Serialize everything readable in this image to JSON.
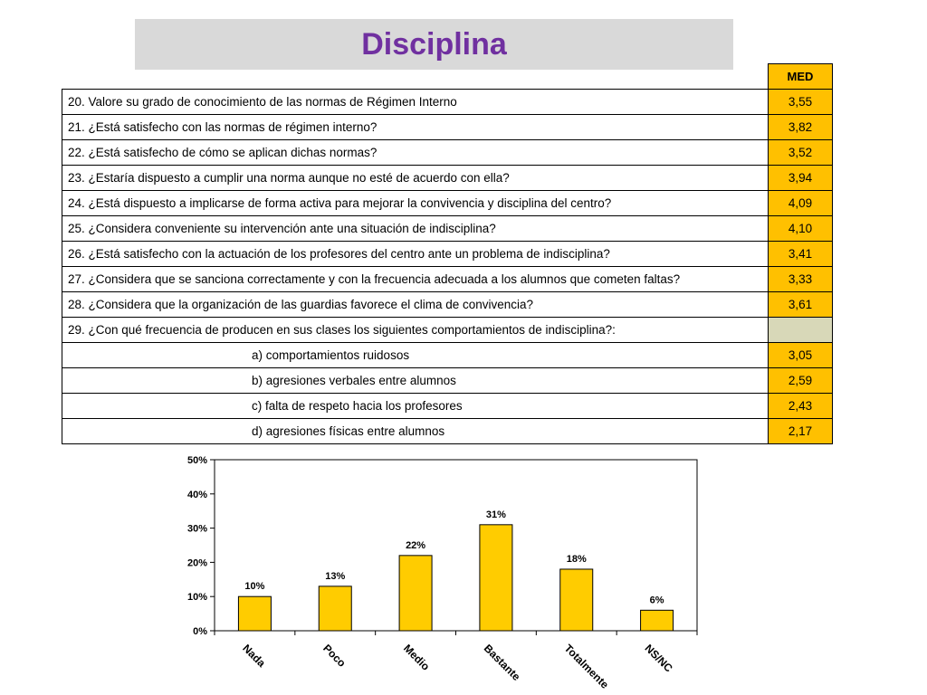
{
  "title": "Disciplina",
  "table": {
    "column_header": "MED",
    "rows": [
      {
        "label": "20. Valore su grado de conocimiento de las normas de Régimen Interno",
        "value": "3,55",
        "sub": false
      },
      {
        "label": "21. ¿Está satisfecho con las normas de régimen interno?",
        "value": "3,82",
        "sub": false
      },
      {
        "label": "22. ¿Está satisfecho de cómo se aplican dichas normas?",
        "value": "3,52",
        "sub": false
      },
      {
        "label": "23. ¿Estaría dispuesto a cumplir una norma aunque no esté de acuerdo con ella?",
        "value": "3,94",
        "sub": false
      },
      {
        "label": "24. ¿Está dispuesto a implicarse de forma activa para mejorar la convivencia y disciplina del centro?",
        "value": "4,09",
        "sub": false
      },
      {
        "label": "25. ¿Considera conveniente su intervención ante una situación de indisciplina?",
        "value": "4,10",
        "sub": false
      },
      {
        "label": "26. ¿Está satisfecho con la actuación de los profesores del centro ante un problema de indisciplina?",
        "value": "3,41",
        "sub": false
      },
      {
        "label": "27. ¿Considera que se sanciona correctamente y con la frecuencia adecuada a los alumnos que cometen faltas?",
        "value": "3,33",
        "sub": false
      },
      {
        "label": "28. ¿Considera que la organización de las guardias favorece el clima de convivencia?",
        "value": "3,61",
        "sub": false
      },
      {
        "label": "29. ¿Con qué frecuencia de producen en sus clases los siguientes comportamientos de indisciplina?:",
        "value": "",
        "sub": false
      },
      {
        "label": "a) comportamientos ruidosos",
        "value": "3,05",
        "sub": true
      },
      {
        "label": "b) agresiones verbales entre alumnos",
        "value": "2,59",
        "sub": true
      },
      {
        "label": "c) falta de respeto hacia los profesores",
        "value": "2,43",
        "sub": true
      },
      {
        "label": "d) agresiones físicas entre alumnos",
        "value": "2,17",
        "sub": true
      }
    ]
  },
  "chart_data": {
    "type": "bar",
    "categories": [
      "Nada",
      "Poco",
      "Medio",
      "Bastante",
      "Totalmente",
      "NS/NC"
    ],
    "values": [
      10,
      13,
      22,
      31,
      18,
      6
    ],
    "value_labels": [
      "10%",
      "13%",
      "22%",
      "31%",
      "18%",
      "6%"
    ],
    "ylim": [
      0,
      50
    ],
    "yticks": [
      0,
      10,
      20,
      30,
      40,
      50
    ],
    "ytick_labels": [
      "0%",
      "10%",
      "20%",
      "30%",
      "40%",
      "50%"
    ],
    "grid": false,
    "legend": "none",
    "bar_color": "#ffcc00"
  }
}
